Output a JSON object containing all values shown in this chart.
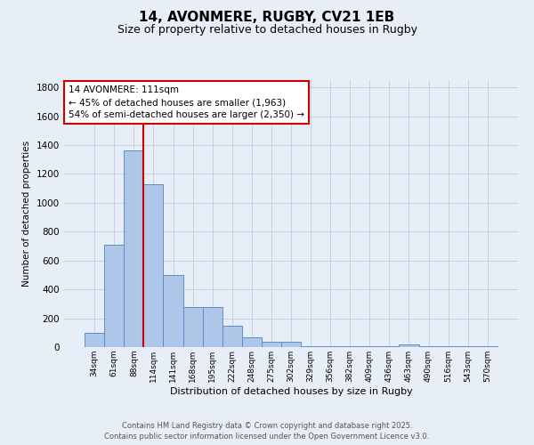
{
  "title": "14, AVONMERE, RUGBY, CV21 1EB",
  "subtitle": "Size of property relative to detached houses in Rugby",
  "xlabel": "Distribution of detached houses by size in Rugby",
  "ylabel": "Number of detached properties",
  "bar_values": [
    100,
    710,
    1360,
    1130,
    500,
    275,
    275,
    148,
    70,
    40,
    35,
    5,
    5,
    5,
    5,
    5,
    20,
    5,
    5,
    5,
    5
  ],
  "bar_labels": [
    "34sqm",
    "61sqm",
    "88sqm",
    "114sqm",
    "141sqm",
    "168sqm",
    "195sqm",
    "222sqm",
    "248sqm",
    "275sqm",
    "302sqm",
    "329sqm",
    "356sqm",
    "382sqm",
    "409sqm",
    "436sqm",
    "463sqm",
    "490sqm",
    "516sqm",
    "543sqm",
    "570sqm"
  ],
  "bar_color": "#aec6e8",
  "bar_edgecolor": "#5b8fc9",
  "bg_color": "#e8eef8",
  "grid_color": "#c8d0de",
  "vline_color": "#cc0000",
  "annotation_text": "14 AVONMERE: 111sqm\n← 45% of detached houses are smaller (1,963)\n54% of semi-detached houses are larger (2,350) →",
  "annotation_box_color": "#ffffff",
  "annotation_edge_color": "#cc0000",
  "ylim": [
    0,
    1850
  ],
  "yticks": [
    0,
    200,
    400,
    600,
    800,
    1000,
    1200,
    1400,
    1600,
    1800
  ],
  "footer_line1": "Contains HM Land Registry data © Crown copyright and database right 2025.",
  "footer_line2": "Contains public sector information licensed under the Open Government Licence v3.0."
}
